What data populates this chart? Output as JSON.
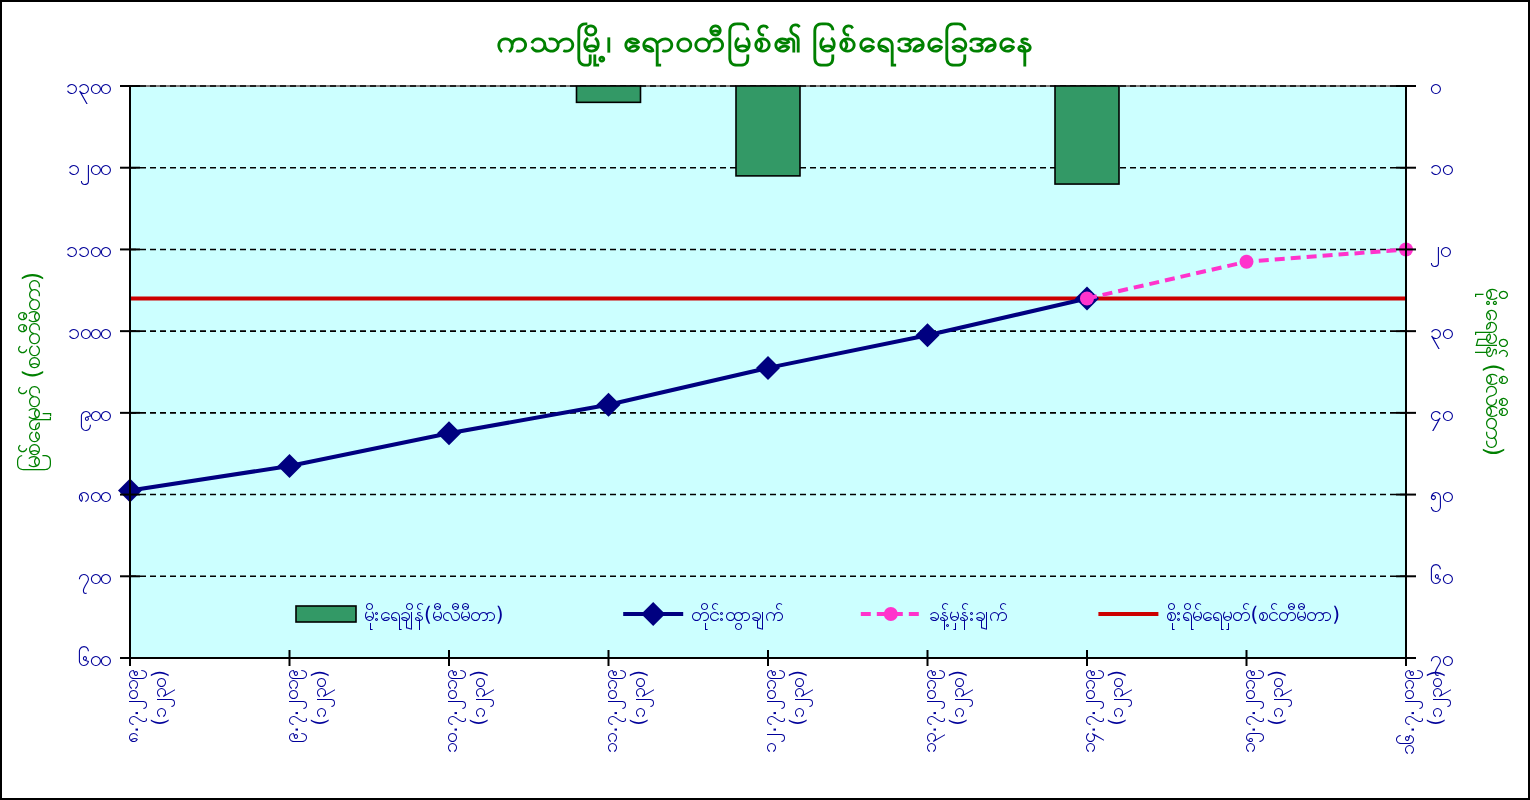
{
  "chart_data": {
    "type": "line",
    "title": "ကသာမြို့၊ ဧရာဝတီမြစ်၏ မြစ်ရေအခြေအနေ",
    "ylabel": "မြစ်ရေမှတ် (စင်တီမီတာ)",
    "y2label": "မိုးရေချိန် (မီလီမီတာ)",
    "categories": [
      "၈.၇.၂၀၁၉\n(၁၂၃၀)",
      "၉.၇.၂၀၁၉\n(၁၂၃၀)",
      "၁၀.၇.၂၀၁၉\n(၁၂၃၀)",
      "၁၁.၇.၂၀၁၉\n(၁၂၃၀)",
      "၁၂.၇.၂၀၁၉\n(၁၂၃၀)",
      "၁၃.၇.၂၀၁၉\n(၁၂၃၀)",
      "၁၄.၇.၂၀၁၉\n(၁၂၃၀)",
      "၁၅.၇.၂၀၁၉\n(၁၂၃၀)",
      "၁၆.၇.၂၀၁၉\n(၁၂၃၀)"
    ],
    "series": [
      {
        "name": "မိုးရေချိန်(မီလီမီတာ)",
        "type": "bar",
        "axis": "y2",
        "color": "#339966",
        "values": [
          null,
          null,
          null,
          2,
          11,
          null,
          12,
          null,
          null
        ]
      },
      {
        "name": "တိုင်းထွာချက်",
        "color": "#000080",
        "marker": "diamond",
        "line_style": "solid",
        "values": [
          805,
          835,
          875,
          910,
          955,
          995,
          1040,
          null,
          null
        ]
      },
      {
        "name": "ခန့်မှန်းချက်",
        "color": "#ff33cc",
        "marker": "circle",
        "line_style": "dashed",
        "values": [
          null,
          null,
          null,
          null,
          null,
          null,
          1040,
          1085,
          1100
        ]
      }
    ],
    "ref_lines": [
      {
        "axis": "y",
        "value": 1040,
        "label": "စိုးရိမ်ရေမှတ်(စင်တီမီတာ)",
        "color": "#cc0000"
      }
    ],
    "ylim": [
      600,
      1300
    ],
    "yticks": [
      {
        "value": 600,
        "label": "၆၀၀"
      },
      {
        "value": 700,
        "label": "၇၀၀"
      },
      {
        "value": 800,
        "label": "၈၀၀"
      },
      {
        "value": 900,
        "label": "၉၀၀"
      },
      {
        "value": 1000,
        "label": "၁၀၀၀"
      },
      {
        "value": 1100,
        "label": "၁၁၀၀"
      },
      {
        "value": 1200,
        "label": "၁၂၀၀"
      },
      {
        "value": 1300,
        "label": "၁၃၀၀"
      }
    ],
    "y2lim": [
      70,
      0
    ],
    "y2ticks": [
      {
        "value": 0,
        "label": "၀"
      },
      {
        "value": 10,
        "label": "၁၀"
      },
      {
        "value": 20,
        "label": "၂၀"
      },
      {
        "value": 30,
        "label": "၃၀"
      },
      {
        "value": 40,
        "label": "၄၀"
      },
      {
        "value": 50,
        "label": "၅၀"
      },
      {
        "value": 60,
        "label": "၆၀"
      },
      {
        "value": 70,
        "label": "၇၀"
      }
    ],
    "grid": "y",
    "legend": "bottom"
  }
}
